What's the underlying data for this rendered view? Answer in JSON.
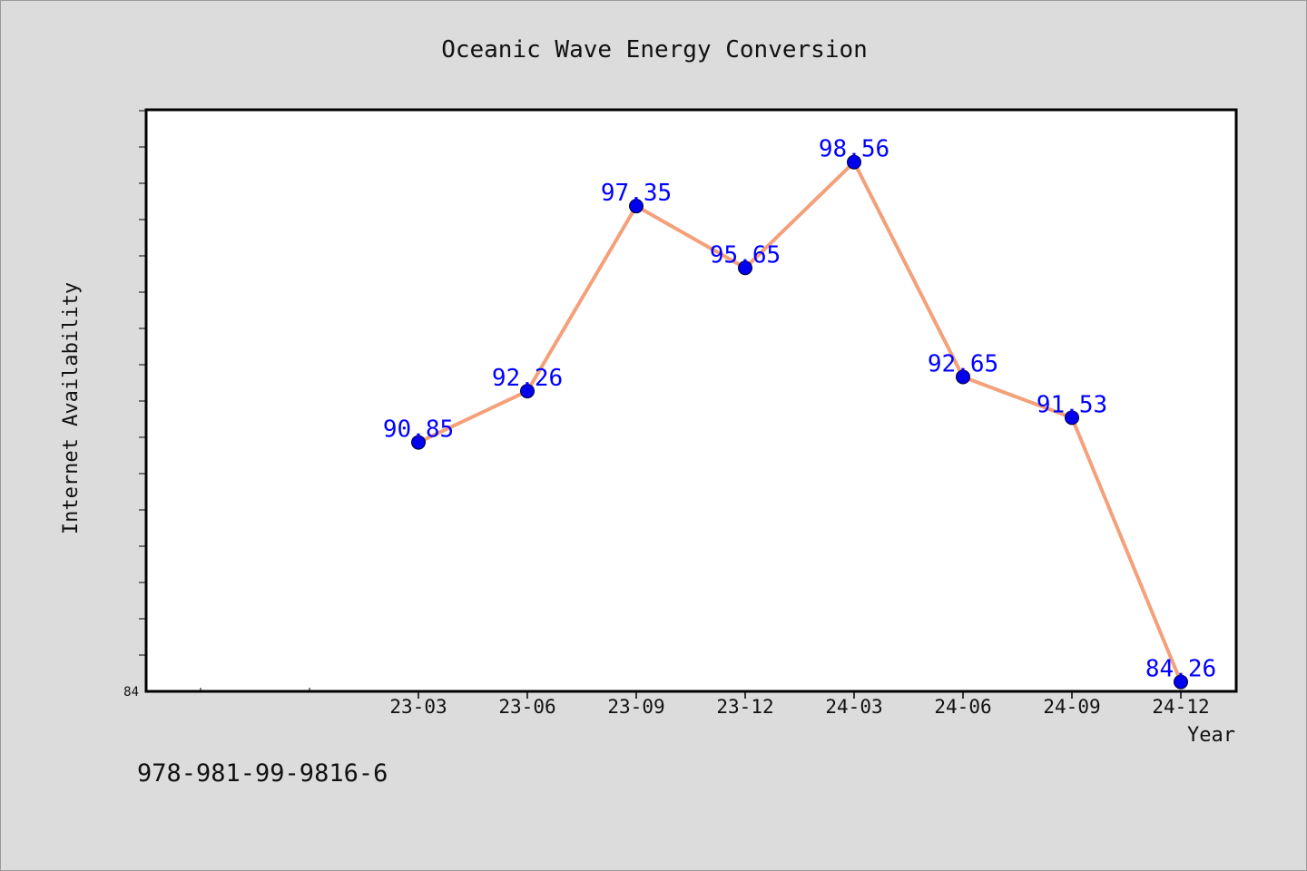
{
  "isbn": "978-981-99-9816-6",
  "chart_data": {
    "type": "line",
    "title": "Oceanic Wave Energy Conversion",
    "xlabel": "Year",
    "ylabel": "Internet Availability",
    "categories": [
      "23-03",
      "23-06",
      "23-09",
      "23-12",
      "24-03",
      "24-06",
      "24-09",
      "24-12"
    ],
    "series": [
      {
        "values": [
          90.85,
          92.26,
          97.35,
          95.65,
          98.56,
          92.65,
          91.53,
          84.26
        ]
      }
    ],
    "y_tick_labels": [
      "84"
    ],
    "ylim": [
      84,
      100
    ],
    "grid": false,
    "line_color": "#f4a07a",
    "marker_color": "#0000ee",
    "label_color": "#0000ff"
  }
}
